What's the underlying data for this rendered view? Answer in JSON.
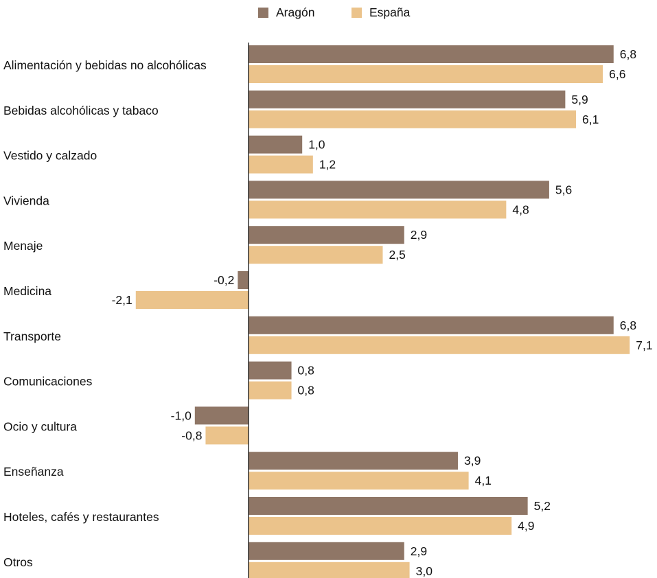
{
  "chart_data": {
    "type": "bar",
    "orientation": "horizontal",
    "title": "",
    "xlabel": "",
    "ylabel": "",
    "categories": [
      "Alimentación y bebidas no alcohólicas",
      "Bebidas alcohólicas y tabaco",
      "Vestido y calzado",
      "Vivienda",
      "Menaje",
      "Medicina",
      "Transporte",
      "Comunicaciones",
      "Ocio y cultura",
      "Enseñanza",
      "Hoteles, cafés y restaurantes",
      "Otros"
    ],
    "series": [
      {
        "name": "Aragón",
        "color": "#8f7666",
        "values": [
          6.8,
          5.9,
          1.0,
          5.6,
          2.9,
          -0.2,
          6.8,
          0.8,
          -1.0,
          3.9,
          5.2,
          2.9
        ],
        "labels": [
          "6,8",
          "5,9",
          "1,0",
          "5,6",
          "2,9",
          "-0,2",
          "6,8",
          "0,8",
          "-1,0",
          "3,9",
          "5,2",
          "2,9"
        ]
      },
      {
        "name": "España",
        "color": "#ebc38b",
        "values": [
          6.6,
          6.1,
          1.2,
          4.8,
          2.5,
          -2.1,
          7.1,
          0.8,
          -0.8,
          4.1,
          4.9,
          3.0
        ],
        "labels": [
          "6,6",
          "6,1",
          "1,2",
          "4,8",
          "2,5",
          "-2,1",
          "7,1",
          "0,8",
          "-0,8",
          "4,1",
          "4,9",
          "3,0"
        ]
      }
    ],
    "xlim": [
      -2.6,
      7.4
    ],
    "grid": false,
    "legend_position": "top-center",
    "zero_axis_line": true
  }
}
